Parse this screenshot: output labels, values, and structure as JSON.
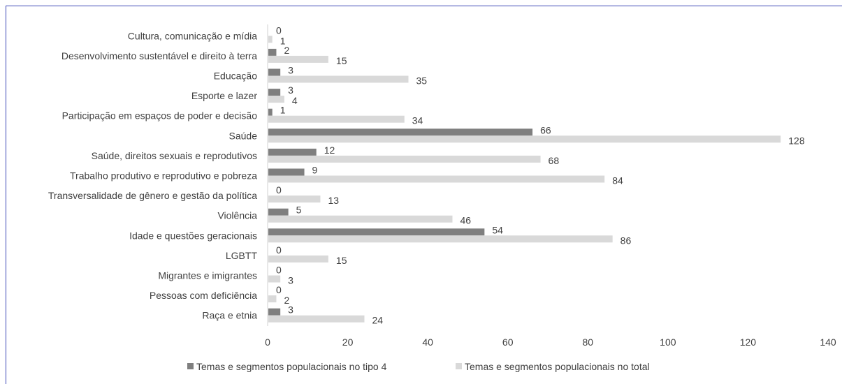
{
  "chart_data": {
    "type": "bar",
    "orientation": "horizontal",
    "title": "",
    "xlabel": "",
    "ylabel": "",
    "xlim": [
      0,
      140
    ],
    "x_ticks": [
      0,
      20,
      40,
      60,
      80,
      100,
      120,
      140
    ],
    "grid": false,
    "legend_position": "bottom",
    "categories": [
      "Cultura, comunicação e mídia",
      "Desenvolvimento sustentável e direito à terra",
      "Educação",
      "Esporte e lazer",
      "Participação em espaços de poder e decisão",
      "Saúde",
      "Saúde, direitos sexuais e reprodutivos",
      "Trabalho produtivo e reprodutivo e pobreza",
      "Transversalidade de gênero e gestão da política",
      "Violência",
      "Idade e questões geracionais",
      "LGBTT",
      "Migrantes e imigrantes",
      "Pessoas com deficiência",
      "Raça e etnia"
    ],
    "series": [
      {
        "name": "Temas e segmentos populacionais no tipo 4",
        "color": "#7f7f7f",
        "values": [
          0,
          2,
          3,
          3,
          1,
          66,
          12,
          9,
          0,
          5,
          54,
          0,
          0,
          0,
          3
        ]
      },
      {
        "name": "Temas e segmentos populacionais no total",
        "color": "#d9d9d9",
        "values": [
          1,
          15,
          35,
          4,
          34,
          128,
          68,
          84,
          13,
          46,
          86,
          15,
          3,
          2,
          24
        ]
      }
    ]
  }
}
